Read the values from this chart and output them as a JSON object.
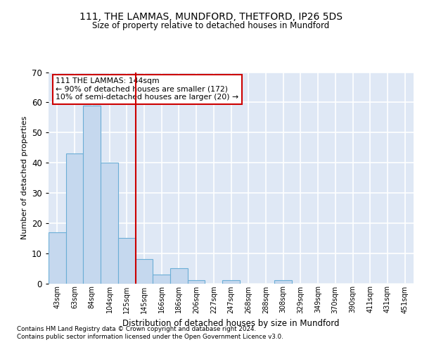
{
  "title": "111, THE LAMMAS, MUNDFORD, THETFORD, IP26 5DS",
  "subtitle": "Size of property relative to detached houses in Mundford",
  "xlabel": "Distribution of detached houses by size in Mundford",
  "ylabel": "Number of detached properties",
  "categories": [
    "43sqm",
    "63sqm",
    "84sqm",
    "104sqm",
    "125sqm",
    "145sqm",
    "166sqm",
    "186sqm",
    "206sqm",
    "227sqm",
    "247sqm",
    "268sqm",
    "288sqm",
    "308sqm",
    "329sqm",
    "349sqm",
    "370sqm",
    "390sqm",
    "411sqm",
    "431sqm",
    "451sqm"
  ],
  "values": [
    17,
    43,
    59,
    40,
    15,
    8,
    3,
    5,
    1,
    0,
    1,
    0,
    0,
    1,
    0,
    0,
    0,
    0,
    0,
    0,
    0
  ],
  "bar_color": "#c5d8ee",
  "bar_edge_color": "#6baed6",
  "vline_x": 4.5,
  "vline_color": "#cc0000",
  "annotation_text": "111 THE LAMMAS: 144sqm\n← 90% of detached houses are smaller (172)\n10% of semi-detached houses are larger (20) →",
  "annotation_box_color": "#ffffff",
  "annotation_box_edge": "#cc0000",
  "ylim": [
    0,
    70
  ],
  "yticks": [
    0,
    10,
    20,
    30,
    40,
    50,
    60,
    70
  ],
  "bg_color": "#dfe8f5",
  "grid_color": "#ffffff",
  "title_fontsize": 10,
  "subtitle_fontsize": 8.5,
  "footer1": "Contains HM Land Registry data © Crown copyright and database right 2024.",
  "footer2": "Contains public sector information licensed under the Open Government Licence v3.0."
}
